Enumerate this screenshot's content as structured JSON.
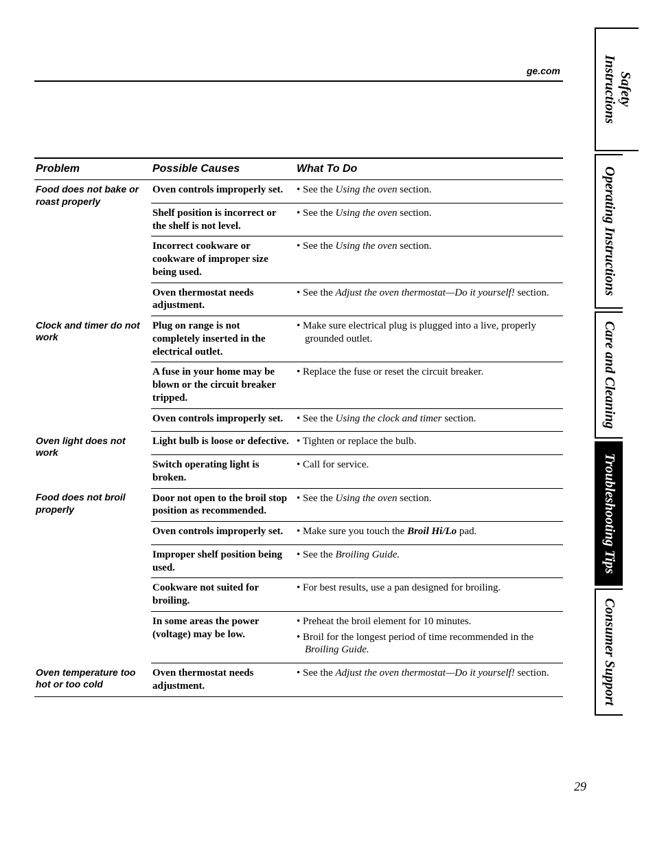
{
  "header_url": "ge.com",
  "page_number": "29",
  "table": {
    "headers": {
      "problem": "Problem",
      "causes": "Possible Causes",
      "what": "What To Do"
    },
    "rows": [
      {
        "problem": "Food does not bake or roast properly",
        "items": [
          {
            "cause": "Oven controls improperly set.",
            "what_prefix": "See the ",
            "what_ital": "Using the oven",
            "what_suffix": " section."
          },
          {
            "cause": "Shelf position is incorrect or the shelf is not level.",
            "what_prefix": "See the ",
            "what_ital": "Using the oven",
            "what_suffix": " section."
          },
          {
            "cause": "Incorrect cookware or cookware of improper size being used.",
            "what_prefix": "See the ",
            "what_ital": "Using the oven",
            "what_suffix": " section."
          },
          {
            "cause": "Oven thermostat needs adjustment.",
            "what_prefix": "See the ",
            "what_ital": "Adjust the oven thermostat—Do it yourself!",
            "what_suffix": " section."
          }
        ]
      },
      {
        "problem": "Clock and timer do not work",
        "items": [
          {
            "cause": "Plug on range is not completely inserted in the electrical outlet.",
            "what_plain": "Make sure electrical plug is plugged into a live, properly grounded outlet."
          },
          {
            "cause": "A fuse in your home may be blown or the circuit breaker tripped.",
            "what_plain": "Replace the fuse or reset the circuit breaker."
          },
          {
            "cause": "Oven controls improperly set.",
            "what_prefix": "See the ",
            "what_ital": "Using the clock and timer",
            "what_suffix": " section."
          }
        ]
      },
      {
        "problem": "Oven light does not work",
        "items": [
          {
            "cause": "Light bulb is loose or defective.",
            "what_plain": "Tighten or replace the bulb."
          },
          {
            "cause": "Switch operating light is broken.",
            "what_plain": "Call for service."
          }
        ]
      },
      {
        "problem": "Food does not broil properly",
        "items": [
          {
            "cause": "Door not open to the broil stop position as recommended.",
            "what_prefix": "See the ",
            "what_ital": "Using the oven",
            "what_suffix": " section."
          },
          {
            "cause": "Oven controls improperly set.",
            "what_prefix2": "Make sure you touch the ",
            "what_boldital": "Broil Hi/Lo",
            "what_suffix2": " pad."
          },
          {
            "cause": "Improper shelf position being used.",
            "what_prefix": "See the ",
            "what_ital": "Broiling Guide.",
            "what_suffix": ""
          },
          {
            "cause": "Cookware not suited for broiling.",
            "what_plain": "For best results, use a pan designed for broiling."
          },
          {
            "cause": "In some areas the power (voltage) may be low.",
            "what_multi": true,
            "li1": "Preheat the broil element for 10 minutes.",
            "li2_prefix": "Broil for the longest period of time recommended in the ",
            "li2_ital": "Broiling Guide.",
            "li2_suffix": ""
          }
        ]
      },
      {
        "problem": "Oven temperature too hot or too cold",
        "items": [
          {
            "cause": "Oven thermostat needs adjustment.",
            "what_prefix": "See the ",
            "what_ital": "Adjust the oven thermostat—Do it yourself!",
            "what_suffix": " section."
          }
        ]
      }
    ]
  },
  "tabs": {
    "t1": "Safety Instructions",
    "t2": "Operating Instructions",
    "t3": "Care and Cleaning",
    "t4": "Troubleshooting Tips",
    "t5": "Consumer Support"
  },
  "tab_heights": {
    "t1": 180,
    "t2": 225,
    "t3": 185,
    "t4": 210,
    "t5": 185
  }
}
